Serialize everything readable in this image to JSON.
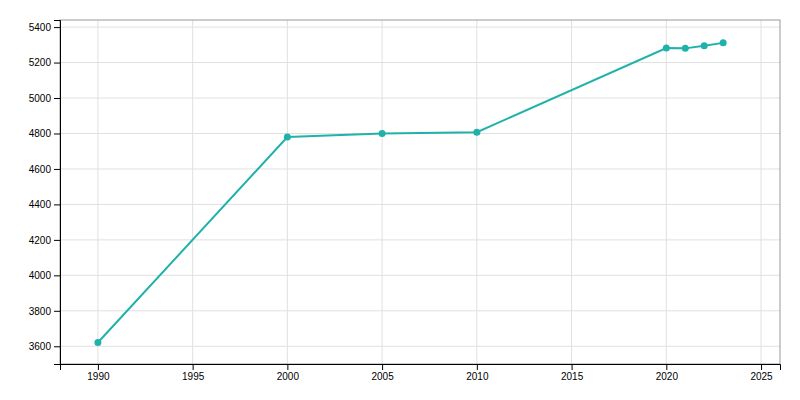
{
  "chart_data": {
    "type": "line",
    "x": [
      1990,
      2000,
      2005,
      2010,
      2020,
      2021,
      2022,
      2023
    ],
    "values": [
      3621,
      4780,
      4800,
      4807,
      5282,
      5280,
      5295,
      5311
    ],
    "color": "#20B2AA",
    "marker": "circle",
    "xlim": [
      1988,
      2026
    ],
    "ylim": [
      3500,
      5440
    ],
    "xticks": [
      1990,
      1995,
      2000,
      2005,
      2010,
      2015,
      2020,
      2025
    ],
    "yticks": [
      3600,
      3800,
      4000,
      4200,
      4400,
      4600,
      4800,
      5000,
      5200,
      5400
    ],
    "grid": true
  }
}
